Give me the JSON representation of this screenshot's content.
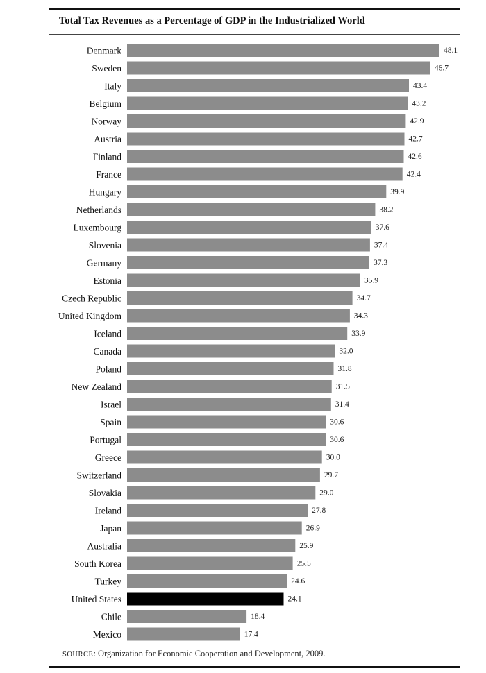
{
  "title": "Total Tax Revenues as a Percentage of GDP in the Industrialized World",
  "source_label": "SOURCE",
  "source_text": ": Organization for Economic Cooperation and Development, 2009.",
  "colors": {
    "bar": "#8c8c8c",
    "highlight": "#000000"
  },
  "chart_data": {
    "type": "bar",
    "orientation": "horizontal",
    "categories": [
      "Denmark",
      "Sweden",
      "Italy",
      "Belgium",
      "Norway",
      "Austria",
      "Finland",
      "France",
      "Hungary",
      "Netherlands",
      "Luxembourg",
      "Slovenia",
      "Germany",
      "Estonia",
      "Czech Republic",
      "United Kingdom",
      "Iceland",
      "Canada",
      "Poland",
      "New Zealand",
      "Israel",
      "Spain",
      "Portugal",
      "Greece",
      "Switzerland",
      "Slovakia",
      "Ireland",
      "Japan",
      "Australia",
      "South Korea",
      "Turkey",
      "United States",
      "Chile",
      "Mexico"
    ],
    "values": [
      48.1,
      46.7,
      43.4,
      43.2,
      42.9,
      42.7,
      42.6,
      42.4,
      39.9,
      38.2,
      37.6,
      37.4,
      37.3,
      35.9,
      34.7,
      34.3,
      33.9,
      32.0,
      31.8,
      31.5,
      31.4,
      30.6,
      30.6,
      30.0,
      29.7,
      29.0,
      27.8,
      26.9,
      25.9,
      25.5,
      24.6,
      24.1,
      18.4,
      17.4
    ],
    "value_labels": [
      "48.1",
      "46.7",
      "43.4",
      "43.2",
      "42.9",
      "42.7",
      "42.6",
      "42.4",
      "39.9",
      "38.2",
      "37.6",
      "37.4",
      "37.3",
      "35.9",
      "34.7",
      "34.3",
      "33.9",
      "32.0",
      "31.8",
      "31.5",
      "31.4",
      "30.6",
      "30.6",
      "30.0",
      "29.7",
      "29.0",
      "27.8",
      "26.9",
      "25.9",
      "25.5",
      "24.6",
      "24.1",
      "18.4",
      "17.4"
    ],
    "highlight": "United States",
    "xlim": [
      0,
      48.1
    ],
    "grid": false,
    "legend": false
  }
}
